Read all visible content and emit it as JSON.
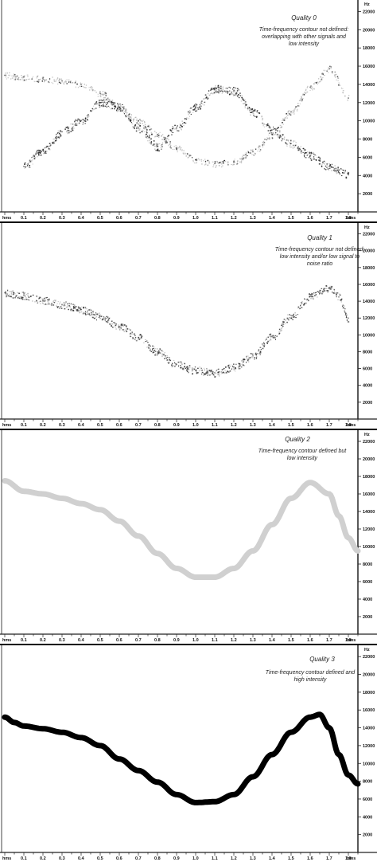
{
  "chart_data": [
    {
      "type": "scatter",
      "title": "Quality 0",
      "subtitle": "Time-frequency contour not defined: overlapping with other signals and low intensity",
      "xunit": "hms",
      "yunit": "Hz",
      "x_ticks": [
        "0.1",
        "0.2",
        "0.3",
        "0.4",
        "0.5",
        "0.6",
        "0.7",
        "0.8",
        "0.9",
        "1.0",
        "1.1",
        "1.2",
        "1.3",
        "1.4",
        "1.5",
        "1.6",
        "1.7",
        "1.8"
      ],
      "y_ticks": [
        "2000",
        "4000",
        "6000",
        "8000",
        "10000",
        "12000",
        "14000",
        "16000",
        "18000",
        "20000",
        "22000"
      ],
      "xlim": [
        0.0,
        1.85
      ],
      "ylim": [
        0,
        23000
      ],
      "color": "#222222",
      "series": [
        {
          "style": "faint",
          "x": [
            0.0,
            0.1,
            0.2,
            0.3,
            0.4,
            0.5,
            0.6,
            0.7,
            0.8,
            0.9,
            1.0,
            1.1,
            1.2,
            1.3,
            1.4,
            1.5,
            1.6,
            1.7,
            1.8
          ],
          "y": [
            15000,
            14800,
            14600,
            14400,
            14000,
            13000,
            11500,
            10000,
            8500,
            7000,
            5700,
            5300,
            5500,
            6600,
            8500,
            11000,
            13700,
            15700,
            12500
          ]
        },
        {
          "style": "dark",
          "x": [
            0.1,
            0.2,
            0.3,
            0.4,
            0.5,
            0.6,
            0.7,
            0.8,
            0.9,
            1.0,
            1.1,
            1.2,
            1.3,
            1.4,
            1.5,
            1.6,
            1.7,
            1.8
          ],
          "y": [
            5000,
            6800,
            8800,
            10000,
            12000,
            11500,
            9200,
            7200,
            9200,
            11500,
            13500,
            13300,
            11000,
            9000,
            7500,
            6200,
            5000,
            4100
          ]
        }
      ]
    },
    {
      "type": "scatter",
      "title": "Quality 1",
      "subtitle": "Time-frequency contour not defined: low intensity and/or low signal to noise ratio",
      "xunit": "hms",
      "yunit": "Hz",
      "x_ticks": [
        "0.1",
        "0.2",
        "0.3",
        "0.4",
        "0.5",
        "0.6",
        "0.7",
        "0.8",
        "0.9",
        "1.0",
        "1.1",
        "1.2",
        "1.3",
        "1.4",
        "1.5",
        "1.6",
        "1.7",
        "1.8"
      ],
      "y_ticks": [
        "2000",
        "4000",
        "6000",
        "8000",
        "10000",
        "12000",
        "14000",
        "16000",
        "18000",
        "20000",
        "22000"
      ],
      "xlim": [
        0.0,
        1.85
      ],
      "ylim": [
        0,
        23000
      ],
      "color": "#333333",
      "series": [
        {
          "style": "dark",
          "x": [
            0.0,
            0.1,
            0.2,
            0.3,
            0.4,
            0.5,
            0.6,
            0.7,
            0.8,
            0.9,
            1.0,
            1.1,
            1.2,
            1.3,
            1.4,
            1.5,
            1.6,
            1.7,
            1.75,
            1.8
          ],
          "y": [
            15000,
            14700,
            14100,
            13600,
            13000,
            12200,
            11000,
            9700,
            8000,
            6500,
            5800,
            5500,
            6200,
            7500,
            9800,
            12300,
            14600,
            15600,
            14500,
            12000
          ]
        }
      ]
    },
    {
      "type": "line",
      "title": "Quality 2",
      "subtitle": "Time-frequency contour defined but low intensity",
      "xunit": "hms",
      "yunit": "Hz",
      "x_ticks": [
        "0.1",
        "0.2",
        "0.3",
        "0.4",
        "0.5",
        "0.6",
        "0.7",
        "0.8",
        "0.9",
        "1.0",
        "1.1",
        "1.2",
        "1.3",
        "1.4",
        "1.5",
        "1.6",
        "1.7",
        "1.8"
      ],
      "y_ticks": [
        "2000",
        "4000",
        "6000",
        "8000",
        "10000",
        "12000",
        "14000",
        "16000",
        "18000",
        "20000",
        "22000"
      ],
      "xlim": [
        0.0,
        1.85
      ],
      "ylim": [
        0,
        23000
      ],
      "color": "#d0d0d0",
      "series": [
        {
          "style": "thick",
          "x": [
            0.0,
            0.1,
            0.2,
            0.3,
            0.4,
            0.5,
            0.6,
            0.7,
            0.8,
            0.9,
            1.0,
            1.1,
            1.2,
            1.3,
            1.4,
            1.5,
            1.6,
            1.7,
            1.75,
            1.8,
            1.85
          ],
          "y": [
            17500,
            16300,
            16000,
            15500,
            14900,
            14200,
            12900,
            11200,
            9200,
            7500,
            6500,
            6500,
            7500,
            9500,
            12500,
            15500,
            17300,
            16000,
            13500,
            11000,
            9500
          ]
        }
      ]
    },
    {
      "type": "line",
      "title": "Quality 3",
      "subtitle": "Time-frequency contour defined and high intensity",
      "xunit": "hms",
      "yunit": "Hz",
      "x_ticks": [
        "0.1",
        "0.2",
        "0.3",
        "0.4",
        "0.5",
        "0.6",
        "0.7",
        "0.8",
        "0.9",
        "1.0",
        "1.1",
        "1.2",
        "1.3",
        "1.4",
        "1.5",
        "1.6",
        "1.7",
        "1.8"
      ],
      "y_ticks": [
        "2000",
        "4000",
        "6000",
        "8000",
        "10000",
        "12000",
        "14000",
        "16000",
        "18000",
        "20000",
        "22000"
      ],
      "xlim": [
        0.0,
        1.85
      ],
      "ylim": [
        0,
        23000
      ],
      "color": "#000000",
      "series": [
        {
          "style": "thick",
          "x": [
            0.0,
            0.05,
            0.1,
            0.2,
            0.3,
            0.4,
            0.5,
            0.6,
            0.7,
            0.8,
            0.9,
            1.0,
            1.1,
            1.2,
            1.3,
            1.4,
            1.5,
            1.6,
            1.65,
            1.7,
            1.75,
            1.8,
            1.85
          ],
          "y": [
            15200,
            14600,
            14200,
            13900,
            13500,
            12900,
            12000,
            10500,
            9200,
            7900,
            6500,
            5600,
            5700,
            6500,
            8500,
            11000,
            13500,
            15200,
            15500,
            14000,
            11000,
            8700,
            7700
          ]
        }
      ]
    }
  ]
}
